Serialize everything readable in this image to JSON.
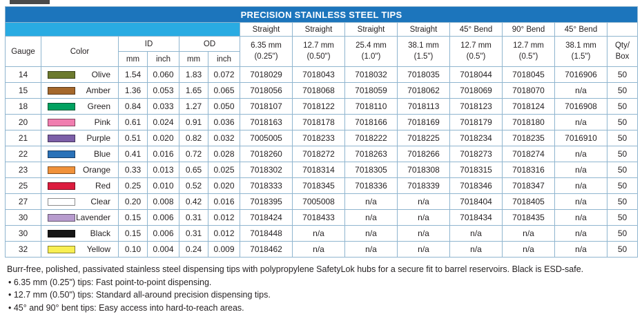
{
  "title": "PRECISION STAINLESS STEEL TIPS",
  "colors": {
    "title_bar": "#1C75BC",
    "accent_bar": "#29ABE2",
    "grid_border": "#8FB5CF"
  },
  "header": {
    "gauge": "Gauge",
    "color": "Color",
    "id": "ID",
    "od": "OD",
    "mm": "mm",
    "inch": "inch",
    "qty_line1": "Qty/",
    "qty_line2": "Box",
    "styles": [
      {
        "style": "Straight",
        "size_mm": "6.35 mm",
        "size_in": "(0.25\")"
      },
      {
        "style": "Straight",
        "size_mm": "12.7 mm",
        "size_in": "(0.50\")"
      },
      {
        "style": "Straight",
        "size_mm": "25.4 mm",
        "size_in": "(1.0\")"
      },
      {
        "style": "Straight",
        "size_mm": "38.1 mm",
        "size_in": "(1.5\")"
      },
      {
        "style": "45° Bend",
        "size_mm": "12.7 mm",
        "size_in": "(0.5\")"
      },
      {
        "style": "90° Bend",
        "size_mm": "12.7 mm",
        "size_in": "(0.5\")"
      },
      {
        "style": "45° Bend",
        "size_mm": "38.1 mm",
        "size_in": "(1.5\")"
      }
    ]
  },
  "rows": [
    {
      "gauge": "14",
      "color": "Olive",
      "swatch": "#6C7A2E",
      "id_mm": "1.54",
      "id_in": "0.060",
      "od_mm": "1.83",
      "od_in": "0.072",
      "parts": [
        "7018029",
        "7018043",
        "7018032",
        "7018035",
        "7018044",
        "7018045",
        "7016906"
      ],
      "qty": "50"
    },
    {
      "gauge": "15",
      "color": "Amber",
      "swatch": "#A5682C",
      "id_mm": "1.36",
      "id_in": "0.053",
      "od_mm": "1.65",
      "od_in": "0.065",
      "parts": [
        "7018056",
        "7018068",
        "7018059",
        "7018062",
        "7018069",
        "7018070",
        "n/a"
      ],
      "qty": "50"
    },
    {
      "gauge": "18",
      "color": "Green",
      "swatch": "#00A160",
      "id_mm": "0.84",
      "id_in": "0.033",
      "od_mm": "1.27",
      "od_in": "0.050",
      "parts": [
        "7018107",
        "7018122",
        "7018110",
        "7018113",
        "7018123",
        "7018124",
        "7016908"
      ],
      "qty": "50"
    },
    {
      "gauge": "20",
      "color": "Pink",
      "swatch": "#F07EB0",
      "id_mm": "0.61",
      "id_in": "0.024",
      "od_mm": "0.91",
      "od_in": "0.036",
      "parts": [
        "7018163",
        "7018178",
        "7018166",
        "7018169",
        "7018179",
        "7018180",
        "n/a"
      ],
      "qty": "50"
    },
    {
      "gauge": "21",
      "color": "Purple",
      "swatch": "#7C5FA8",
      "id_mm": "0.51",
      "id_in": "0.020",
      "od_mm": "0.82",
      "od_in": "0.032",
      "parts": [
        "7005005",
        "7018233",
        "7018222",
        "7018225",
        "7018234",
        "7018235",
        "7016910"
      ],
      "qty": "50"
    },
    {
      "gauge": "22",
      "color": "Blue",
      "swatch": "#2A72B8",
      "id_mm": "0.41",
      "id_in": "0.016",
      "od_mm": "0.72",
      "od_in": "0.028",
      "parts": [
        "7018260",
        "7018272",
        "7018263",
        "7018266",
        "7018273",
        "7018274",
        "n/a"
      ],
      "qty": "50"
    },
    {
      "gauge": "23",
      "color": "Orange",
      "swatch": "#F0923B",
      "id_mm": "0.33",
      "id_in": "0.013",
      "od_mm": "0.65",
      "od_in": "0.025",
      "parts": [
        "7018302",
        "7018314",
        "7018305",
        "7018308",
        "7018315",
        "7018316",
        "n/a"
      ],
      "qty": "50"
    },
    {
      "gauge": "25",
      "color": "Red",
      "swatch": "#DC1C3E",
      "id_mm": "0.25",
      "id_in": "0.010",
      "od_mm": "0.52",
      "od_in": "0.020",
      "parts": [
        "7018333",
        "7018345",
        "7018336",
        "7018339",
        "7018346",
        "7018347",
        "n/a"
      ],
      "qty": "50"
    },
    {
      "gauge": "27",
      "color": "Clear",
      "swatch": "#FFFFFF",
      "id_mm": "0.20",
      "id_in": "0.008",
      "od_mm": "0.42",
      "od_in": "0.016",
      "parts": [
        "7018395",
        "7005008",
        "n/a",
        "n/a",
        "7018404",
        "7018405",
        "n/a"
      ],
      "qty": "50"
    },
    {
      "gauge": "30",
      "color": "Lavender",
      "swatch": "#B79BCE",
      "id_mm": "0.15",
      "id_in": "0.006",
      "od_mm": "0.31",
      "od_in": "0.012",
      "parts": [
        "7018424",
        "7018433",
        "n/a",
        "n/a",
        "7018434",
        "7018435",
        "n/a"
      ],
      "qty": "50"
    },
    {
      "gauge": "30",
      "color": "Black",
      "swatch": "#161616",
      "id_mm": "0.15",
      "id_in": "0.006",
      "od_mm": "0.31",
      "od_in": "0.012",
      "parts": [
        "7018448",
        "n/a",
        "n/a",
        "n/a",
        "n/a",
        "n/a",
        "n/a"
      ],
      "qty": "50"
    },
    {
      "gauge": "32",
      "color": "Yellow",
      "swatch": "#F8EF53",
      "id_mm": "0.10",
      "id_in": "0.004",
      "od_mm": "0.24",
      "od_in": "0.009",
      "parts": [
        "7018462",
        "n/a",
        "n/a",
        "n/a",
        "n/a",
        "n/a",
        "n/a"
      ],
      "qty": "50"
    }
  ],
  "footer": {
    "intro": "Burr-free, polished, passivated stainless steel dispensing tips with polypropylene SafetyLok hubs for a secure fit to barrel reservoirs. Black is ESD-safe.",
    "bullets": [
      "6.35 mm (0.25\") tips: Fast point-to-point dispensing.",
      "12.7 mm (0.50\") tips: Standard all-around precision dispensing tips.",
      "45° and 90° bent tips: Easy access into hard-to-reach areas."
    ]
  }
}
